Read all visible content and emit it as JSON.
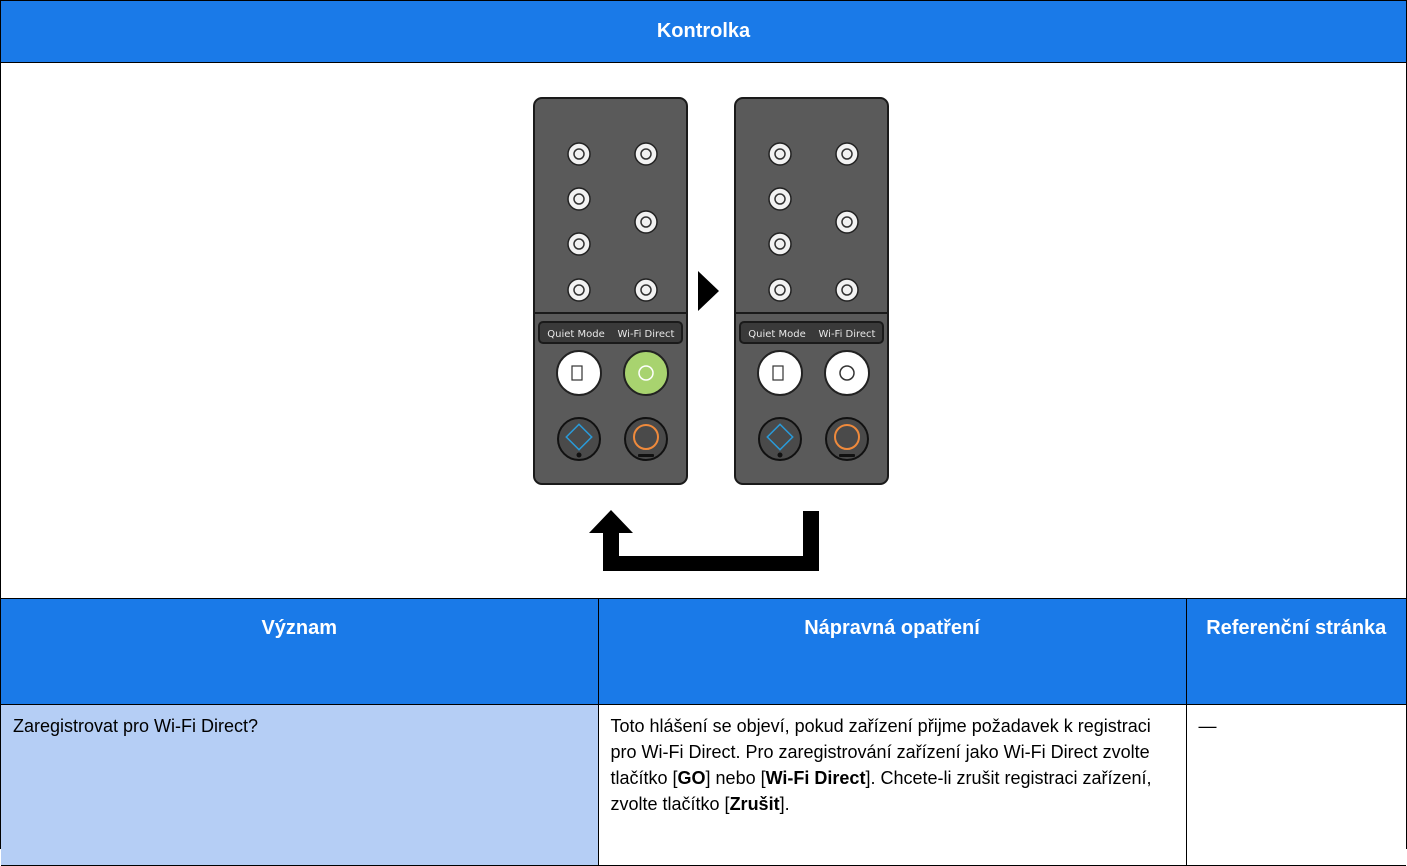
{
  "header": {
    "title": "Kontrolka"
  },
  "panels": [
    {
      "labels": [
        "Quiet Mode",
        "Wi-Fi Direct"
      ]
    },
    {
      "labels": [
        "Quiet Mode",
        "Wi-Fi Direct"
      ]
    }
  ],
  "table": {
    "columns": [
      "Význam",
      "Nápravná opatření",
      "Referenční stránka"
    ],
    "rows": [
      [
        "Zaregistrovat pro Wi-Fi Direct?",
        [
          {
            "text": "Toto hlášení se objeví, pokud zařízení přijme požadavek k registraci pro Wi-Fi Direct. Pro zaregistrování zařízení jako Wi-Fi Direct zvolte tlačítko ["
          },
          {
            "text": "GO",
            "bold": true
          },
          {
            "text": "] nebo ["
          },
          {
            "text": "Wi-Fi Direct",
            "bold": true
          },
          {
            "text": "]. Chcete-li zrušit registraci zařízení, zvolte tlačítko ["
          },
          {
            "text": "Zrušit",
            "bold": true
          },
          {
            "text": "]."
          }
        ],
        "—"
      ]
    ]
  }
}
